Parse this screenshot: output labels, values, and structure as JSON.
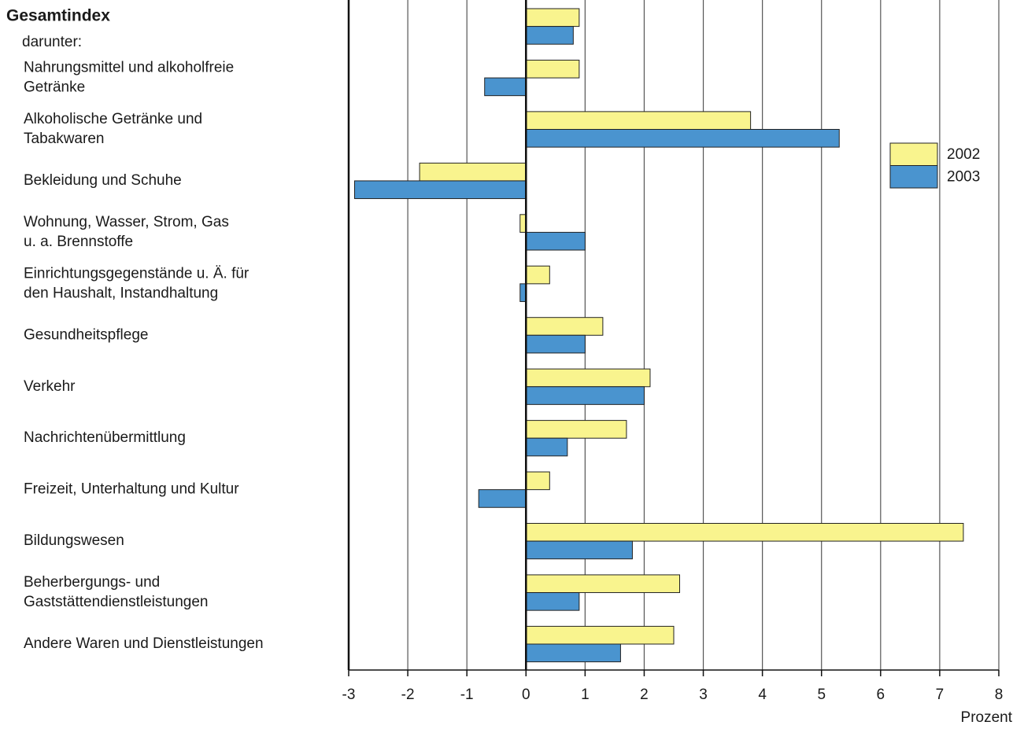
{
  "chart_data": {
    "type": "bar",
    "orientation": "horizontal",
    "categories": [
      "Gesamtindex",
      "Nahrungsmittel und alkoholfreie\nGetränke",
      "Alkoholische Getränke und\nTabakwaren",
      "Bekleidung und Schuhe",
      "Wohnung, Wasser, Strom, Gas\nu. a. Brennstoffe",
      "Einrichtungsgegenstände u. Ä. für\nden Haushalt, Instandhaltung",
      "Gesundheitspflege",
      "Verkehr",
      "Nachrichtenübermittlung",
      "Freizeit, Unterhaltung und Kultur",
      "Bildungswesen",
      "Beherbergungs- und\nGaststättendienstleistungen",
      "Andere Waren und Dienstleistungen"
    ],
    "group_label": "darunter:",
    "series": [
      {
        "name": "2002",
        "color": "#f9f48e",
        "values": [
          0.9,
          0.9,
          3.8,
          -1.8,
          -0.1,
          0.4,
          1.3,
          2.1,
          1.7,
          0.4,
          7.4,
          2.6,
          2.5
        ]
      },
      {
        "name": "2003",
        "color": "#4a94cf",
        "values": [
          0.8,
          -0.7,
          5.3,
          -2.9,
          1.0,
          -0.1,
          1.0,
          2.0,
          0.7,
          -0.8,
          1.8,
          0.9,
          1.6
        ]
      }
    ],
    "xlabel": "Prozent",
    "xlim": [
      -3,
      8
    ],
    "xticks": [
      -3,
      -2,
      -1,
      0,
      1,
      2,
      3,
      4,
      5,
      6,
      7,
      8
    ],
    "grid": true,
    "legend": "upper right"
  }
}
